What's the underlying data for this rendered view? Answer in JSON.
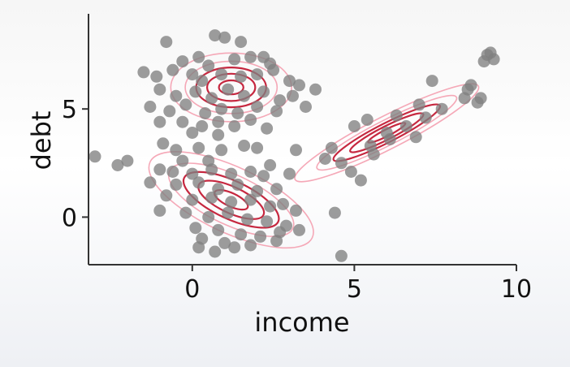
{
  "chart_data": {
    "type": "scatter",
    "xlabel": "income",
    "ylabel": "debt",
    "xlim": [
      -3.2,
      10
    ],
    "ylim": [
      -2.2,
      9.4
    ],
    "x_ticks": [
      0,
      5,
      10
    ],
    "y_ticks": [
      0,
      5
    ],
    "x_tick_labels": [
      "0",
      "5",
      "10"
    ],
    "y_tick_labels": [
      "0",
      "5"
    ],
    "grid": false,
    "point_color": "#808080",
    "contour_colors": [
      "#c0102a",
      "#f4a3b3"
    ],
    "series": [
      {
        "points": [
          [
            -0.8,
            8.1
          ],
          [
            0.7,
            8.4
          ],
          [
            1.0,
            8.3
          ],
          [
            1.5,
            8.1
          ],
          [
            0.2,
            7.4
          ],
          [
            -0.3,
            7.2
          ],
          [
            0.5,
            7.0
          ],
          [
            1.3,
            7.3
          ],
          [
            1.8,
            7.4
          ],
          [
            2.2,
            7.4
          ],
          [
            2.4,
            7.1
          ],
          [
            -1.5,
            6.7
          ],
          [
            -1.1,
            6.5
          ],
          [
            -0.6,
            6.8
          ],
          [
            0.0,
            6.6
          ],
          [
            0.3,
            6.3
          ],
          [
            0.9,
            6.6
          ],
          [
            1.5,
            6.5
          ],
          [
            2.0,
            6.6
          ],
          [
            2.5,
            6.8
          ],
          [
            3.0,
            6.3
          ],
          [
            3.3,
            6.1
          ],
          [
            3.8,
            5.9
          ],
          [
            -1.0,
            5.9
          ],
          [
            -0.5,
            5.6
          ],
          [
            0.1,
            5.8
          ],
          [
            0.6,
            5.5
          ],
          [
            1.1,
            5.9
          ],
          [
            1.6,
            5.6
          ],
          [
            2.2,
            5.8
          ],
          [
            2.7,
            5.4
          ],
          [
            3.1,
            5.6
          ],
          [
            -1.3,
            5.1
          ],
          [
            -0.7,
            4.9
          ],
          [
            -0.2,
            5.2
          ],
          [
            0.4,
            4.8
          ],
          [
            0.9,
            5.0
          ],
          [
            1.4,
            4.8
          ],
          [
            2.0,
            5.1
          ],
          [
            2.6,
            4.9
          ],
          [
            3.5,
            5.1
          ],
          [
            -0.3,
            4.4
          ],
          [
            0.3,
            4.2
          ],
          [
            0.8,
            4.4
          ],
          [
            1.3,
            4.2
          ],
          [
            1.8,
            4.5
          ],
          [
            2.3,
            4.1
          ],
          [
            0.0,
            3.9
          ],
          [
            0.8,
            3.8
          ],
          [
            -1.0,
            4.4
          ],
          [
            -0.9,
            3.4
          ],
          [
            -0.5,
            3.1
          ],
          [
            0.2,
            3.2
          ],
          [
            0.9,
            3.1
          ],
          [
            1.6,
            3.3
          ],
          [
            2.0,
            3.2
          ],
          [
            2.4,
            2.4
          ],
          [
            3.2,
            3.1
          ],
          [
            -3.0,
            2.8
          ],
          [
            -2.3,
            2.4
          ],
          [
            -2.0,
            2.6
          ],
          [
            -0.3,
            2.6
          ],
          [
            0.5,
            2.6
          ],
          [
            -1.0,
            2.2
          ],
          [
            -0.6,
            2.1
          ],
          [
            0.0,
            2.0
          ],
          [
            0.6,
            2.2
          ],
          [
            1.2,
            2.0
          ],
          [
            1.8,
            2.1
          ],
          [
            2.2,
            1.9
          ],
          [
            3.0,
            2.0
          ],
          [
            -1.3,
            1.6
          ],
          [
            -0.5,
            1.5
          ],
          [
            0.2,
            1.6
          ],
          [
            0.8,
            1.3
          ],
          [
            1.4,
            1.5
          ],
          [
            2.0,
            1.2
          ],
          [
            2.6,
            1.3
          ],
          [
            -0.8,
            1.0
          ],
          [
            0.0,
            0.8
          ],
          [
            0.6,
            0.9
          ],
          [
            1.2,
            0.7
          ],
          [
            1.8,
            0.8
          ],
          [
            2.4,
            0.5
          ],
          [
            2.8,
            0.6
          ],
          [
            3.2,
            0.3
          ],
          [
            -1.0,
            0.3
          ],
          [
            -0.2,
            0.2
          ],
          [
            0.5,
            0.0
          ],
          [
            1.1,
            0.2
          ],
          [
            1.7,
            -0.1
          ],
          [
            2.3,
            -0.2
          ],
          [
            2.9,
            -0.4
          ],
          [
            0.1,
            -0.5
          ],
          [
            0.8,
            -0.6
          ],
          [
            1.5,
            -0.8
          ],
          [
            2.1,
            -0.9
          ],
          [
            2.7,
            -0.7
          ],
          [
            3.3,
            -0.6
          ],
          [
            0.3,
            -1.0
          ],
          [
            1.0,
            -1.2
          ],
          [
            1.8,
            -1.3
          ],
          [
            2.6,
            -1.1
          ],
          [
            0.2,
            -1.4
          ],
          [
            0.7,
            -1.6
          ],
          [
            1.3,
            -1.4
          ],
          [
            4.4,
            0.2
          ],
          [
            4.6,
            -1.8
          ],
          [
            4.3,
            3.2
          ],
          [
            4.1,
            2.7
          ],
          [
            4.6,
            2.5
          ],
          [
            4.9,
            2.1
          ],
          [
            5.2,
            1.7
          ],
          [
            5.0,
            4.2
          ],
          [
            5.5,
            3.3
          ],
          [
            5.4,
            4.5
          ],
          [
            5.6,
            2.9
          ],
          [
            6.0,
            3.9
          ],
          [
            6.3,
            4.7
          ],
          [
            6.1,
            3.6
          ],
          [
            6.6,
            4.2
          ],
          [
            7.0,
            5.2
          ],
          [
            7.2,
            4.6
          ],
          [
            6.9,
            3.7
          ],
          [
            7.4,
            6.3
          ],
          [
            7.7,
            5.0
          ],
          [
            8.4,
            5.5
          ],
          [
            8.6,
            6.1
          ],
          [
            8.5,
            5.9
          ],
          [
            8.9,
            5.5
          ],
          [
            9.1,
            7.5
          ],
          [
            9.3,
            7.3
          ],
          [
            9.0,
            7.2
          ],
          [
            8.8,
            5.3
          ],
          [
            9.2,
            7.6
          ]
        ]
      }
    ],
    "gaussian_components": [
      {
        "mean": [
          1.2,
          6.0
        ],
        "radius_x": 1.35,
        "radius_y": 1.15,
        "angle_deg": 0
      },
      {
        "mean": [
          1.2,
          0.8
        ],
        "radius_x": 2.0,
        "radius_y": 1.1,
        "angle_deg": -25
      },
      {
        "mean": [
          6.0,
          3.9
        ],
        "radius_x": 2.3,
        "radius_y": 0.55,
        "angle_deg": 27
      }
    ],
    "contour_scales": [
      0.28,
      0.55,
      0.8,
      1.05,
      1.38
    ]
  }
}
